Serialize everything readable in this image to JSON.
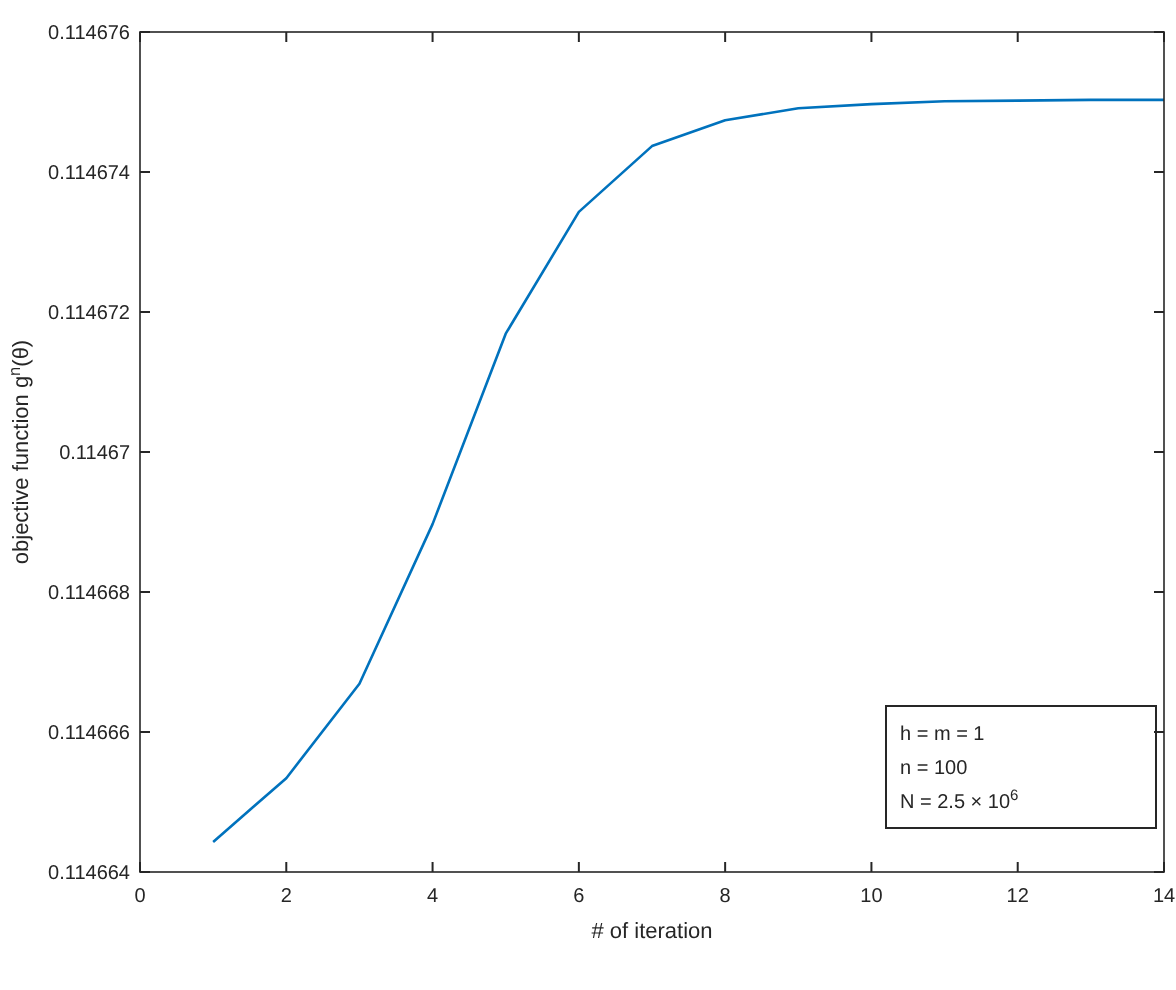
{
  "chart_data": {
    "type": "line",
    "xlabel": "# of iteration",
    "ylabel": "objective function g$^{n}$(θ)",
    "x": [
      1,
      2,
      3,
      4,
      5,
      6,
      7,
      8,
      9,
      10,
      11,
      12,
      13,
      14
    ],
    "series": [
      {
        "color": "#0072bd",
        "values": [
          0.11466443,
          0.11466534,
          0.11466669,
          0.11466897,
          0.11467169,
          0.11467343,
          0.11467437,
          0.11467474,
          0.11467491,
          0.11467497,
          0.11467501,
          0.11467502,
          0.11467503,
          0.11467503
        ]
      }
    ],
    "xlim": [
      0,
      14
    ],
    "xticks": [
      0,
      2,
      4,
      6,
      8,
      10,
      12,
      14
    ],
    "ylim": [
      0.114664,
      0.114676
    ],
    "yticks": [
      0.114664,
      0.114666,
      0.114668,
      0.11467,
      0.114672,
      0.114674,
      0.114676
    ],
    "annotations": [
      "h = m = 1",
      "n = 100",
      "N = 2.5 × 10$^{6}$"
    ],
    "grid": false,
    "marker": "none",
    "line_style": "solid"
  }
}
